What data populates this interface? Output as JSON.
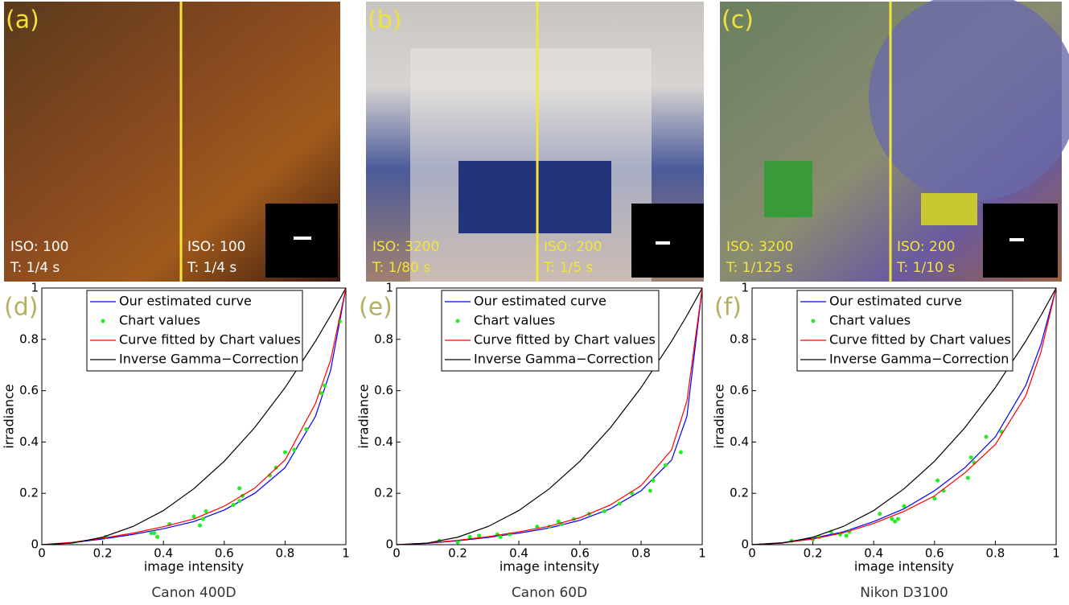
{
  "panels": [
    {
      "label": "(a)",
      "left": {
        "iso": "ISO: 100",
        "t": "T: 1/4 s"
      },
      "right": {
        "iso": "ISO: 100",
        "t": "T: 1/4 s"
      }
    },
    {
      "label": "(b)",
      "left": {
        "iso": "ISO: 3200",
        "t": "T: 1/80 s"
      },
      "right": {
        "iso": "ISO: 200",
        "t": "T: 1/5 s"
      }
    },
    {
      "label": "(c)",
      "left": {
        "iso": "ISO: 3200",
        "t": "T: 1/125 s"
      },
      "right": {
        "iso": "ISO: 200",
        "t": "T: 1/10 s"
      }
    }
  ],
  "chart_data": [
    {
      "type": "line",
      "label": "(d)",
      "caption": "Canon 400D",
      "xlabel": "image intensity",
      "ylabel": "irradiance",
      "xlim": [
        0,
        1
      ],
      "ylim": [
        0,
        1
      ],
      "xticks": [
        0,
        0.2,
        0.4,
        0.6,
        0.8,
        1
      ],
      "yticks": [
        0,
        0.2,
        0.4,
        0.6,
        0.8,
        1
      ],
      "x": [
        0,
        0.1,
        0.2,
        0.3,
        0.4,
        0.5,
        0.6,
        0.7,
        0.8,
        0.9,
        0.95,
        1
      ],
      "series": [
        {
          "name": "Our estimated curve",
          "color": "#0000ff",
          "values": [
            0,
            0.008,
            0.022,
            0.04,
            0.062,
            0.09,
            0.135,
            0.2,
            0.3,
            0.5,
            0.68,
            1
          ]
        },
        {
          "name": "Chart values",
          "color": "#22ee22",
          "marker": true,
          "x": [
            0.21,
            0.36,
            0.37,
            0.38,
            0.42,
            0.5,
            0.52,
            0.54,
            0.53,
            0.63,
            0.65,
            0.65,
            0.66,
            0.75,
            0.77,
            0.8,
            0.83,
            0.87,
            0.92,
            0.93,
            0.98
          ],
          "values": [
            0.03,
            0.045,
            0.045,
            0.03,
            0.08,
            0.11,
            0.075,
            0.13,
            0.1,
            0.155,
            0.22,
            0.17,
            0.19,
            0.27,
            0.3,
            0.36,
            0.37,
            0.45,
            0.59,
            0.62,
            0.87
          ]
        },
        {
          "name": "Curve fitted by Chart values",
          "color": "#ff0000",
          "values": [
            0,
            0.009,
            0.025,
            0.045,
            0.07,
            0.1,
            0.15,
            0.22,
            0.33,
            0.55,
            0.72,
            1
          ]
        },
        {
          "name": "Inverse Gamma−Correction",
          "color": "#000000",
          "values": [
            0,
            0.006,
            0.029,
            0.071,
            0.133,
            0.218,
            0.325,
            0.456,
            0.612,
            0.793,
            0.893,
            1
          ]
        }
      ]
    },
    {
      "type": "line",
      "label": "(e)",
      "caption": "Canon 60D",
      "xlabel": "image intensity",
      "ylabel": "irradiance",
      "xlim": [
        0,
        1
      ],
      "ylim": [
        0,
        1
      ],
      "xticks": [
        0,
        0.2,
        0.4,
        0.6,
        0.8,
        1
      ],
      "yticks": [
        0,
        0.2,
        0.4,
        0.6,
        0.8,
        1
      ],
      "x": [
        0,
        0.1,
        0.2,
        0.3,
        0.4,
        0.5,
        0.6,
        0.7,
        0.8,
        0.9,
        0.95,
        1
      ],
      "series": [
        {
          "name": "Our estimated curve",
          "color": "#0000ff",
          "values": [
            0,
            0.005,
            0.015,
            0.028,
            0.045,
            0.065,
            0.095,
            0.14,
            0.21,
            0.33,
            0.5,
            1
          ]
        },
        {
          "name": "Chart values",
          "color": "#22ee22",
          "marker": true,
          "x": [
            0.14,
            0.2,
            0.24,
            0.27,
            0.33,
            0.34,
            0.37,
            0.46,
            0.5,
            0.53,
            0.54,
            0.58,
            0.63,
            0.68,
            0.73,
            0.77,
            0.83,
            0.84,
            0.88,
            0.93
          ],
          "values": [
            0.015,
            0.01,
            0.03,
            0.035,
            0.04,
            0.03,
            0.04,
            0.07,
            0.07,
            0.09,
            0.08,
            0.1,
            0.12,
            0.13,
            0.16,
            0.2,
            0.21,
            0.25,
            0.31,
            0.36
          ]
        },
        {
          "name": "Curve fitted by Chart values",
          "color": "#ff0000",
          "values": [
            0,
            0.006,
            0.017,
            0.031,
            0.05,
            0.072,
            0.105,
            0.155,
            0.23,
            0.37,
            0.56,
            1
          ]
        },
        {
          "name": "Inverse Gamma−Correction",
          "color": "#000000",
          "values": [
            0,
            0.006,
            0.029,
            0.071,
            0.133,
            0.218,
            0.325,
            0.456,
            0.612,
            0.793,
            0.893,
            1
          ]
        }
      ]
    },
    {
      "type": "line",
      "label": "(f)",
      "caption": "Nikon D3100",
      "xlabel": "image intensity",
      "ylabel": "irradiance",
      "xlim": [
        0,
        1
      ],
      "ylim": [
        0,
        1
      ],
      "xticks": [
        0,
        0.2,
        0.4,
        0.6,
        0.8,
        1
      ],
      "yticks": [
        0,
        0.2,
        0.4,
        0.6,
        0.8,
        1
      ],
      "x": [
        0,
        0.1,
        0.2,
        0.3,
        0.4,
        0.5,
        0.6,
        0.7,
        0.8,
        0.9,
        0.95,
        1
      ],
      "series": [
        {
          "name": "Our estimated curve",
          "color": "#0000ff",
          "values": [
            0,
            0.008,
            0.025,
            0.05,
            0.09,
            0.14,
            0.21,
            0.3,
            0.42,
            0.62,
            0.78,
            1
          ]
        },
        {
          "name": "Chart values",
          "color": "#22ee22",
          "marker": true,
          "x": [
            0.13,
            0.2,
            0.22,
            0.26,
            0.29,
            0.31,
            0.32,
            0.42,
            0.46,
            0.47,
            0.48,
            0.5,
            0.6,
            0.61,
            0.63,
            0.71,
            0.73,
            0.72,
            0.77,
            0.82
          ],
          "values": [
            0.015,
            0.02,
            0.03,
            0.05,
            0.04,
            0.035,
            0.05,
            0.12,
            0.1,
            0.09,
            0.1,
            0.15,
            0.18,
            0.25,
            0.21,
            0.26,
            0.32,
            0.34,
            0.42,
            0.44
          ]
        },
        {
          "name": "Curve fitted by Chart values",
          "color": "#ff0000",
          "values": [
            0,
            0.007,
            0.022,
            0.046,
            0.083,
            0.13,
            0.19,
            0.28,
            0.39,
            0.58,
            0.75,
            1
          ]
        },
        {
          "name": "Inverse Gamma−Correction",
          "color": "#000000",
          "values": [
            0,
            0.006,
            0.029,
            0.071,
            0.133,
            0.218,
            0.325,
            0.456,
            0.612,
            0.793,
            0.893,
            1
          ]
        }
      ]
    }
  ]
}
